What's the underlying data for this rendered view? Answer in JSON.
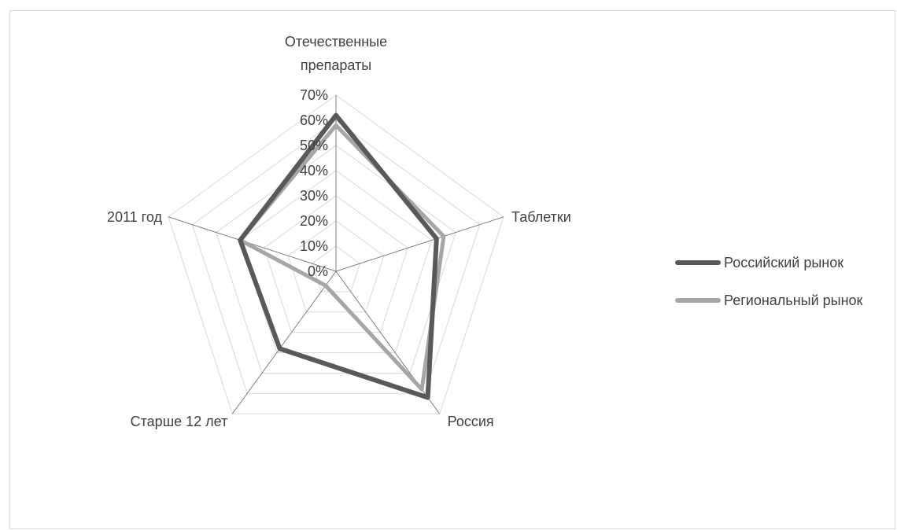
{
  "chart_data": {
    "type": "radar",
    "categories": [
      "Отечественные препараты",
      "Таблетки",
      "Россия",
      "Старше 12 лет",
      "2011 год"
    ],
    "category_lines": [
      [
        "Отечественные",
        "препараты"
      ],
      [
        "Таблетки"
      ],
      [
        "Россия"
      ],
      [
        "Старше 12 лет"
      ],
      [
        "2011 год"
      ]
    ],
    "ticks": [
      "0%",
      "10%",
      "20%",
      "30%",
      "40%",
      "50%",
      "60%",
      "70%"
    ],
    "rlim": [
      0,
      0.7
    ],
    "grid": true,
    "legend_position": "right",
    "series": [
      {
        "name": "Российский рынок",
        "values": [
          0.62,
          0.42,
          0.62,
          0.38,
          0.4
        ],
        "color": "#595959"
      },
      {
        "name": "Региональный рынок",
        "values": [
          0.58,
          0.45,
          0.58,
          0.07,
          0.4
        ],
        "color": "#a6a6a6"
      }
    ]
  }
}
